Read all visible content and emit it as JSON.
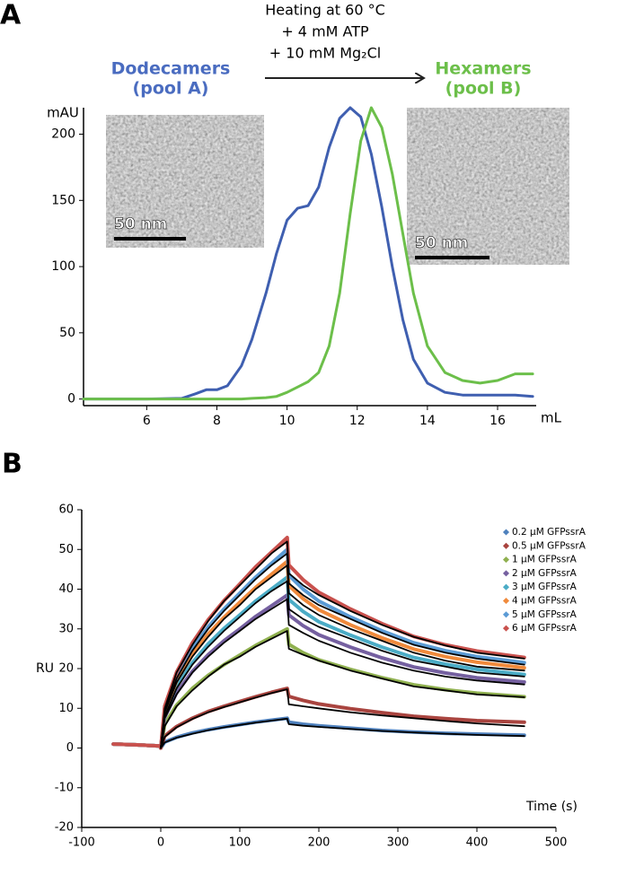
{
  "chart_data": [
    {
      "type": "line",
      "panel": "A",
      "annotations": [
        "Heating at 60 °C",
        "+ 4 mM ATP",
        "+ 10 mM Mg₂Cl"
      ],
      "ylabel": "mAU",
      "xlabel": "mL",
      "insets": [
        {
          "label": "50 nm"
        },
        {
          "label": "50 nm"
        }
      ],
      "x": [
        4.2,
        5,
        6,
        7,
        7.4,
        7.7,
        8,
        8.3,
        8.7,
        9,
        9.4,
        9.7,
        10,
        10.3,
        10.6,
        10.9,
        11.2,
        11.5,
        11.8,
        12.1,
        12.4,
        12.7,
        13,
        13.3,
        13.6,
        14,
        14.5,
        15,
        15.5,
        16,
        16.5,
        17
      ],
      "series": [
        {
          "name": "Dodecamers",
          "pool": "(pool A)",
          "color": "#3f5fb0",
          "values": [
            0,
            0,
            0,
            0.5,
            4,
            7,
            7,
            10,
            25,
            45,
            80,
            110,
            135,
            144,
            146,
            160,
            190,
            212,
            220,
            213,
            185,
            145,
            100,
            60,
            30,
            12,
            5,
            3,
            3,
            3,
            3,
            2
          ]
        },
        {
          "name": "Hexamers",
          "pool": "(pool B)",
          "color": "#6cbf4a",
          "values": [
            0,
            0,
            0,
            0,
            0,
            0,
            0,
            0,
            0,
            0.5,
            1,
            2,
            5,
            9,
            13,
            20,
            40,
            80,
            140,
            195,
            220,
            205,
            170,
            125,
            80,
            40,
            20,
            14,
            12,
            14,
            19,
            19
          ]
        }
      ],
      "xlim": [
        4.2,
        17.1
      ],
      "ylim": [
        -5,
        220
      ],
      "xticks": [
        6,
        8,
        10,
        12,
        14,
        16
      ],
      "yticks": [
        0,
        50,
        100,
        150,
        200
      ]
    },
    {
      "type": "line",
      "panel": "B",
      "ylabel": "RU",
      "xlabel": "Time (s)",
      "x": [
        -60,
        -30,
        -1,
        0,
        5,
        20,
        40,
        60,
        80,
        100,
        120,
        140,
        160,
        162,
        180,
        200,
        240,
        280,
        320,
        360,
        400,
        460
      ],
      "series": [
        {
          "name": "0.2 μM GFPssrA",
          "color": "#4f81bd",
          "values": [
            1,
            0.8,
            0.5,
            0,
            1.5,
            2.7,
            3.8,
            4.6,
            5.3,
            5.9,
            6.5,
            7,
            7.5,
            6.5,
            6,
            5.6,
            5,
            4.4,
            4,
            3.7,
            3.5,
            3.2
          ]
        },
        {
          "name": "0.5 μM GFPssrA",
          "color": "#a9443f",
          "values": [
            1,
            0.8,
            0.5,
            0,
            3,
            5.4,
            7.5,
            9.2,
            10.5,
            11.7,
            12.9,
            14,
            15,
            13,
            12,
            11.1,
            9.9,
            8.9,
            8,
            7.4,
            6.9,
            6.5
          ]
        },
        {
          "name": "1 μM GFPssrA",
          "color": "#8fb04f",
          "values": [
            1,
            0.8,
            0.5,
            0,
            6,
            10.8,
            15,
            18.3,
            21,
            23.4,
            25.8,
            27.9,
            30,
            26.1,
            24,
            22.2,
            19.8,
            17.7,
            15.9,
            14.7,
            13.8,
            12.9
          ]
        },
        {
          "name": "2 μM GFPssrA",
          "color": "#7560a0",
          "values": [
            1,
            0.8,
            0.5,
            0,
            7.7,
            13.9,
            19.3,
            23.5,
            27,
            30,
            33.1,
            35.8,
            38.5,
            33.5,
            30.8,
            28.5,
            25.4,
            22.7,
            20.4,
            18.9,
            17.7,
            16.6
          ]
        },
        {
          "name": "3 μM GFPssrA",
          "color": "#4bacc6",
          "values": [
            1,
            0.8,
            0.5,
            0,
            8.6,
            15.5,
            21.5,
            26.2,
            30.1,
            33.5,
            37,
            40,
            43,
            37.4,
            34.4,
            31.8,
            28.4,
            25.4,
            22.8,
            21.1,
            19.8,
            18.5
          ]
        },
        {
          "name": "4 μM GFPssrA",
          "color": "#f08a3c",
          "values": [
            1,
            0.8,
            0.5,
            0,
            9.4,
            16.9,
            23.5,
            28.7,
            32.9,
            36.7,
            40.4,
            43.7,
            47,
            40.9,
            37.6,
            34.8,
            31,
            27.7,
            24.9,
            23,
            21.6,
            20.2
          ]
        },
        {
          "name": "5 μM GFPssrA",
          "color": "#5b9bd5",
          "values": [
            1,
            0.8,
            0.5,
            0,
            10,
            18,
            25,
            30.5,
            35,
            39,
            43,
            46.5,
            50,
            43.5,
            40,
            37,
            33,
            29.5,
            26.5,
            24.5,
            23,
            21.5
          ]
        },
        {
          "name": "6 μM GFPssrA",
          "color": "#c9514d",
          "values": [
            1,
            0.8,
            0.5,
            0,
            10.6,
            19.1,
            26.5,
            32.3,
            37.1,
            41.3,
            45.6,
            49.3,
            53,
            46.1,
            42.4,
            39.2,
            35,
            31.3,
            28.1,
            26,
            24.4,
            22.8
          ]
        },
        {
          "color": "#000000",
          "values": [
            null,
            null,
            null,
            0,
            1.4,
            2.6,
            3.6,
            4.5,
            5.2,
            5.8,
            6.4,
            6.9,
            7.4,
            6,
            5.6,
            5.3,
            4.8,
            4.3,
            3.9,
            3.6,
            3.3,
            3
          ]
        },
        {
          "color": "#000000",
          "values": [
            null,
            null,
            null,
            0,
            2.8,
            5.2,
            7.3,
            9,
            10.3,
            11.5,
            12.7,
            13.8,
            14.8,
            11,
            10.5,
            10,
            9,
            8.2,
            7.5,
            6.8,
            6.2,
            5.5
          ]
        },
        {
          "color": "#000000",
          "values": [
            null,
            null,
            null,
            0,
            5.5,
            10.5,
            14.5,
            18,
            21,
            23,
            25.5,
            27.5,
            29.5,
            25,
            23.5,
            22,
            19.5,
            17.5,
            15.5,
            14.5,
            13.5,
            12.8
          ]
        },
        {
          "color": "#000000",
          "values": [
            null,
            null,
            null,
            0,
            7.5,
            13.5,
            19,
            23,
            26.5,
            29.5,
            32.5,
            35,
            37.5,
            31,
            29,
            27,
            24,
            21.5,
            19.5,
            18,
            17,
            16
          ]
        },
        {
          "color": "#000000",
          "values": [
            null,
            null,
            null,
            0,
            8,
            15,
            21,
            25.5,
            29.5,
            33,
            36.5,
            39.5,
            42,
            35,
            32.5,
            30.5,
            27.5,
            24.5,
            22,
            20.5,
            19,
            18
          ]
        },
        {
          "color": "#000000",
          "values": [
            null,
            null,
            null,
            0,
            9,
            16.5,
            23,
            28,
            32.5,
            36,
            40,
            43,
            46,
            39,
            36,
            33.5,
            30,
            27,
            24,
            22,
            20.5,
            19.5
          ]
        },
        {
          "color": "#000000",
          "values": [
            null,
            null,
            null,
            0,
            9.5,
            17.5,
            24.5,
            30,
            34.5,
            38.5,
            42.5,
            46,
            49,
            41.5,
            38.5,
            36,
            32.5,
            29,
            26,
            24,
            22.5,
            21
          ]
        },
        {
          "color": "#000000",
          "values": [
            null,
            null,
            null,
            0,
            10,
            19,
            26,
            32,
            37,
            41,
            45,
            49,
            52,
            44,
            41,
            38.5,
            34.5,
            31,
            28,
            25.8,
            24,
            22.5
          ]
        }
      ],
      "xlim": [
        -100,
        500
      ],
      "ylim": [
        -20,
        60
      ],
      "xticks": [
        -100,
        0,
        100,
        200,
        300,
        400,
        500
      ],
      "yticks": [
        -20,
        -10,
        0,
        10,
        20,
        30,
        40,
        50,
        60
      ]
    }
  ]
}
